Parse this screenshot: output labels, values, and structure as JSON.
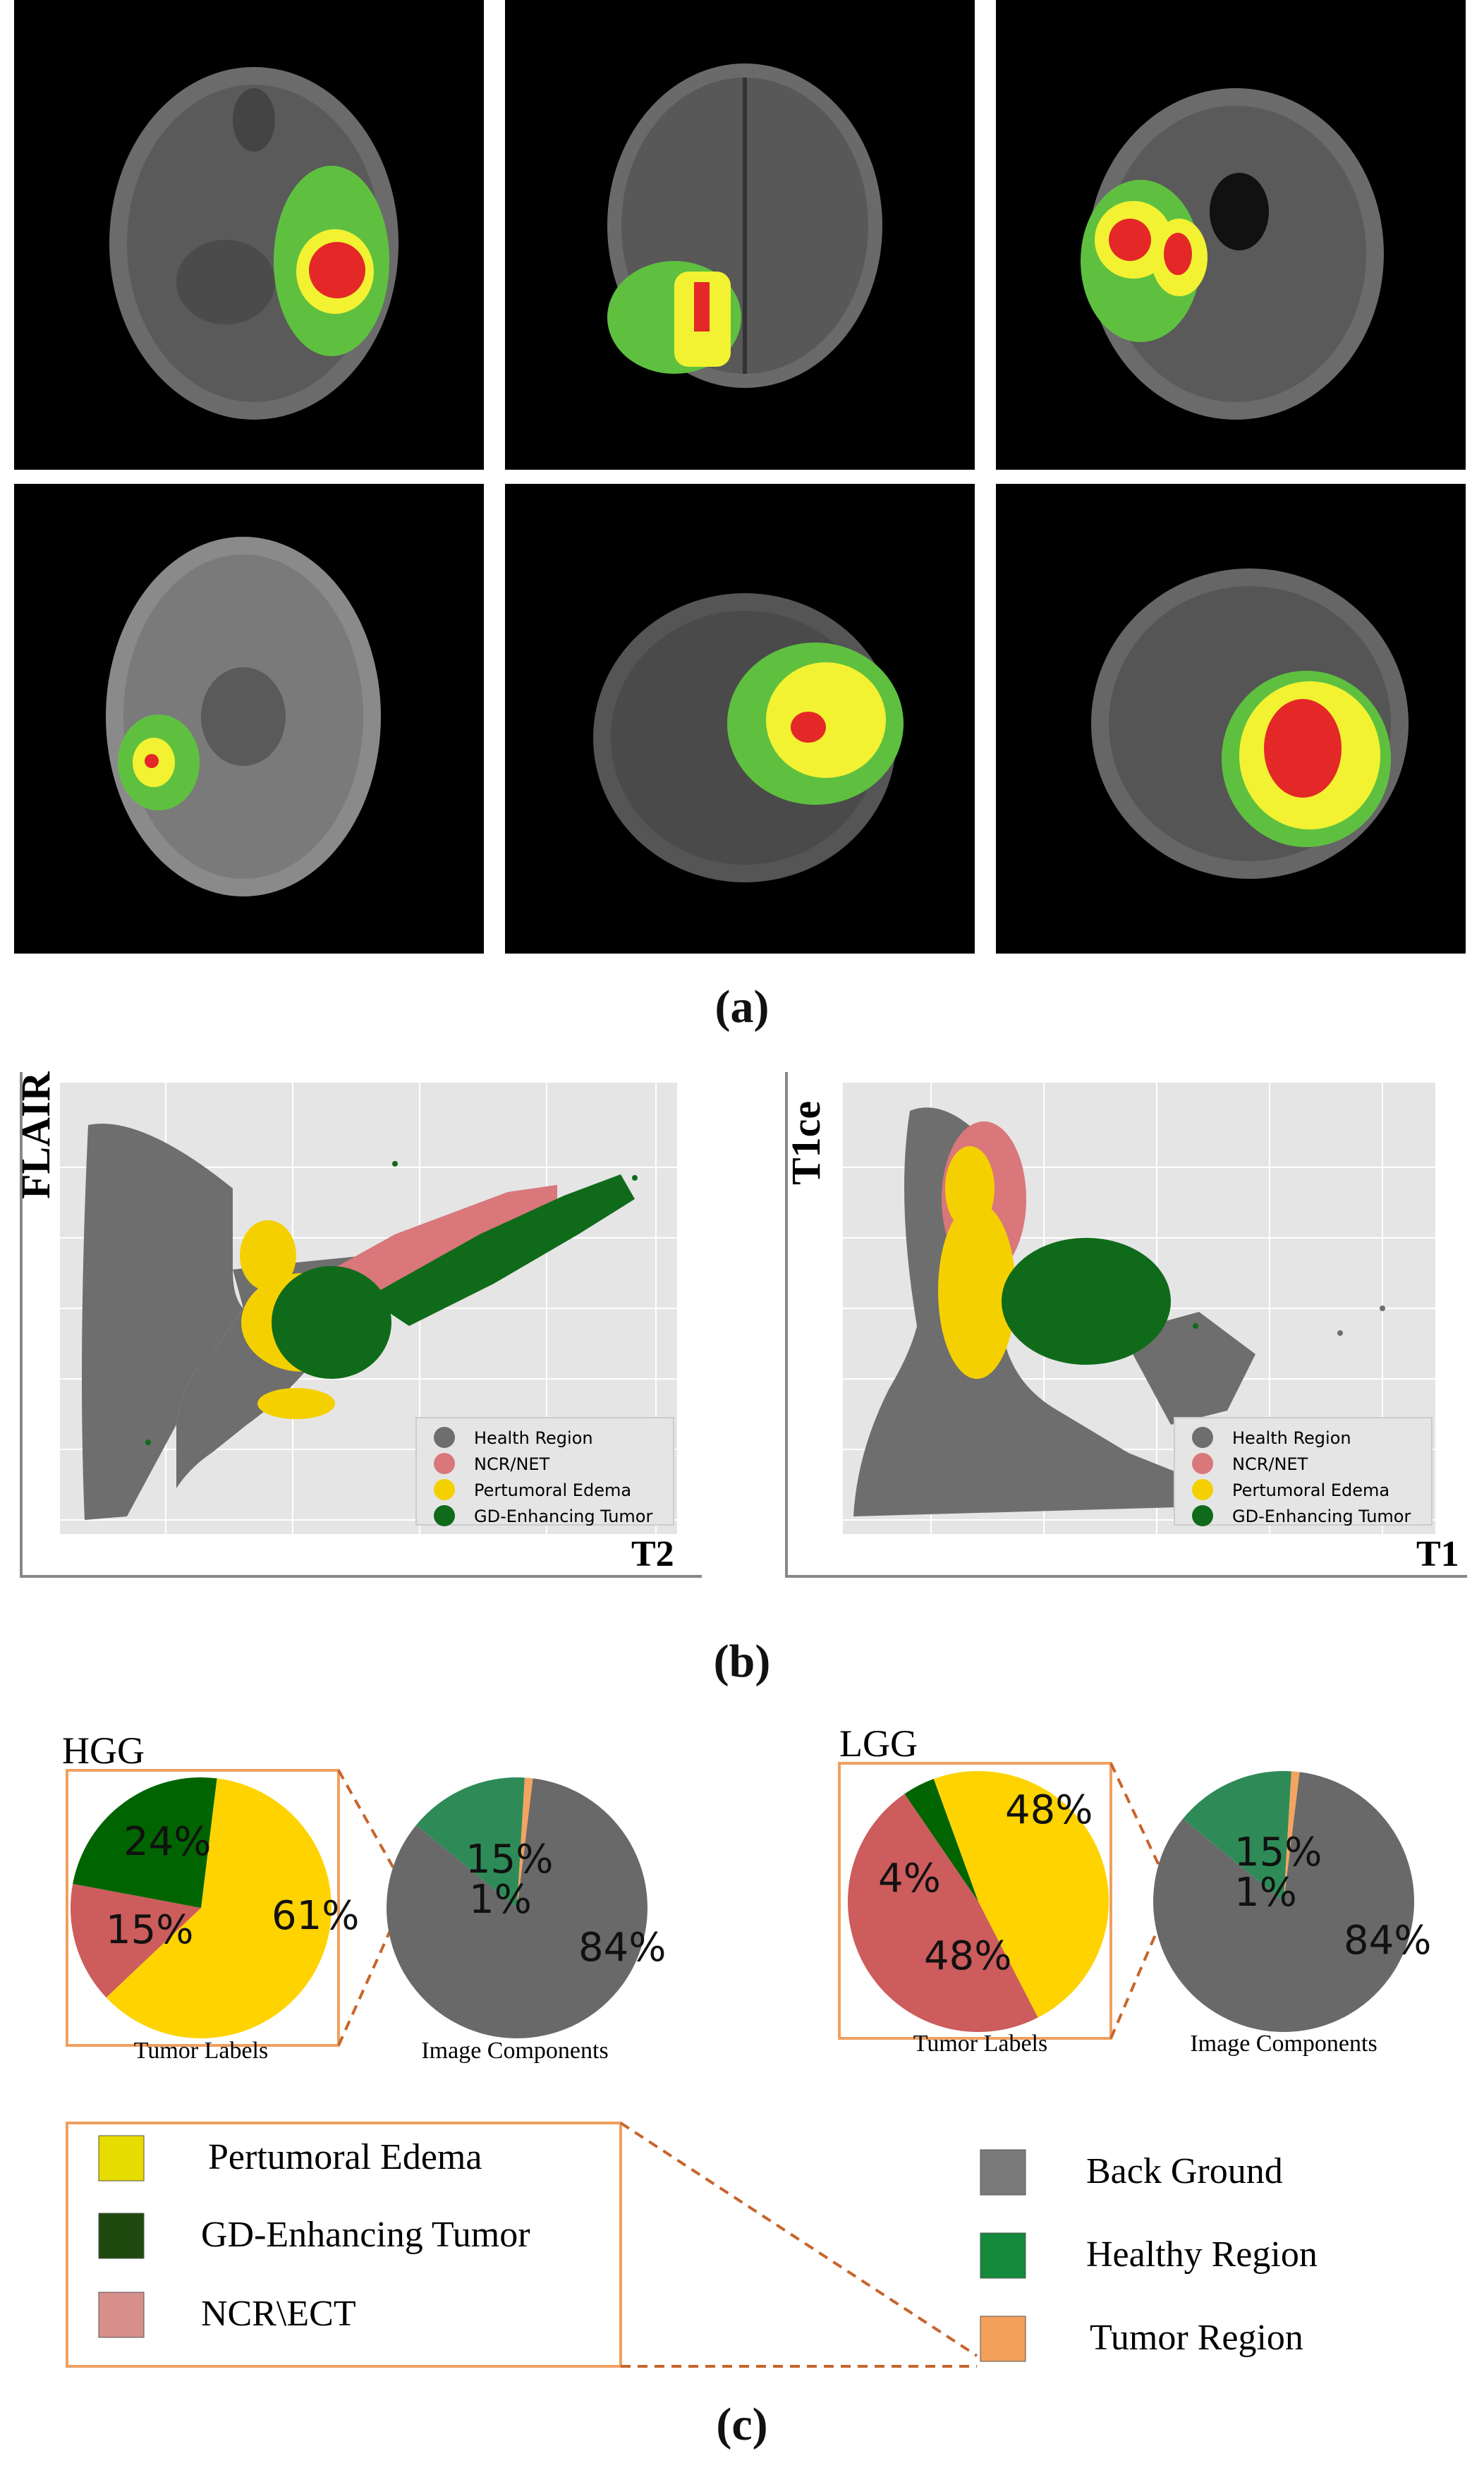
{
  "panel_a": {
    "label": "(a)",
    "legend": {
      "edema": "#f2f232",
      "enhancing": "#5fc040",
      "necrotic": "#e42828"
    },
    "scans": [
      {
        "id": "a1"
      },
      {
        "id": "a2"
      },
      {
        "id": "a3"
      },
      {
        "id": "a4"
      },
      {
        "id": "a5"
      },
      {
        "id": "a6"
      }
    ]
  },
  "panel_b": {
    "label": "(b)",
    "legend_items": [
      {
        "label": "Health Region",
        "color": "#6e6e6e"
      },
      {
        "label": "NCR/NET",
        "color": "#d9777a"
      },
      {
        "label": "Pertumoral Edema",
        "color": "#f5d000"
      },
      {
        "label": "GD-Enhancing Tumor",
        "color": "#0f6b1a"
      }
    ]
  },
  "panel_c": {
    "label": "(c)",
    "hgg_label": "HGG",
    "lgg_label": "LGG",
    "tumor_labels_caption": "Tumor Labels",
    "image_components_caption": "Image Components",
    "legend_left": [
      {
        "label": "Pertumoral Edema",
        "color": "#e6dc00"
      },
      {
        "label": "GD-Enhancing Tumor",
        "color": "#1f4a0f"
      },
      {
        "label": "NCR\\ECT",
        "color": "#d68f8a"
      }
    ],
    "legend_right": [
      {
        "label": "Back Ground",
        "color": "#7a7a7a"
      },
      {
        "label": "Healthy Region",
        "color": "#138a3c"
      },
      {
        "label": "Tumor Region",
        "color": "#f4a05a"
      }
    ]
  },
  "chart_data": [
    {
      "type": "scatter",
      "title": "",
      "xlabel": "T2",
      "ylabel": "FLAIR",
      "series": [
        {
          "name": "Health Region",
          "color": "#6e6e6e"
        },
        {
          "name": "NCR/NET",
          "color": "#d9777a"
        },
        {
          "name": "Pertumoral Edema",
          "color": "#f5d000"
        },
        {
          "name": "GD-Enhancing Tumor",
          "color": "#0f6b1a"
        }
      ],
      "grid": true,
      "legend_position": "bottom-right"
    },
    {
      "type": "scatter",
      "title": "",
      "xlabel": "T1",
      "ylabel": "T1ce",
      "series": [
        {
          "name": "Health Region",
          "color": "#6e6e6e"
        },
        {
          "name": "NCR/NET",
          "color": "#d9777a"
        },
        {
          "name": "Pertumoral Edema",
          "color": "#f5d000"
        },
        {
          "name": "GD-Enhancing Tumor",
          "color": "#0f6b1a"
        }
      ],
      "grid": true,
      "legend_position": "bottom-right"
    },
    {
      "type": "pie",
      "group": "HGG",
      "caption": "Tumor Labels",
      "slices": [
        {
          "label": "Pertumoral Edema",
          "value": 61,
          "text": "61%",
          "color": "#fed300"
        },
        {
          "label": "NCR\\ECT",
          "value": 15,
          "text": "15%",
          "color": "#cd5c5c"
        },
        {
          "label": "GD-Enhancing Tumor",
          "value": 24,
          "text": "24%",
          "color": "#006400"
        }
      ]
    },
    {
      "type": "pie",
      "group": "HGG",
      "caption": "Image Components",
      "slices": [
        {
          "label": "Back Ground",
          "value": 84,
          "text": "84%",
          "color": "#696969"
        },
        {
          "label": "Healthy Region",
          "value": 15,
          "text": "15%",
          "color": "#2e8b57"
        },
        {
          "label": "Tumor Region",
          "value": 1,
          "text": "1%",
          "color": "#f4a460"
        }
      ]
    },
    {
      "type": "pie",
      "group": "LGG",
      "caption": "Tumor Labels",
      "slices": [
        {
          "label": "Pertumoral Edema",
          "value": 48,
          "text": "48%",
          "color": "#fed300"
        },
        {
          "label": "NCR\\ECT",
          "value": 48,
          "text": "48%",
          "color": "#cd5c5c"
        },
        {
          "label": "GD-Enhancing Tumor",
          "value": 4,
          "text": "4%",
          "color": "#006400"
        }
      ]
    },
    {
      "type": "pie",
      "group": "LGG",
      "caption": "Image Components",
      "slices": [
        {
          "label": "Back Ground",
          "value": 84,
          "text": "84%",
          "color": "#696969"
        },
        {
          "label": "Healthy Region",
          "value": 15,
          "text": "15%",
          "color": "#2e8b57"
        },
        {
          "label": "Tumor Region",
          "value": 1,
          "text": "1%",
          "color": "#f4a460"
        }
      ]
    }
  ]
}
